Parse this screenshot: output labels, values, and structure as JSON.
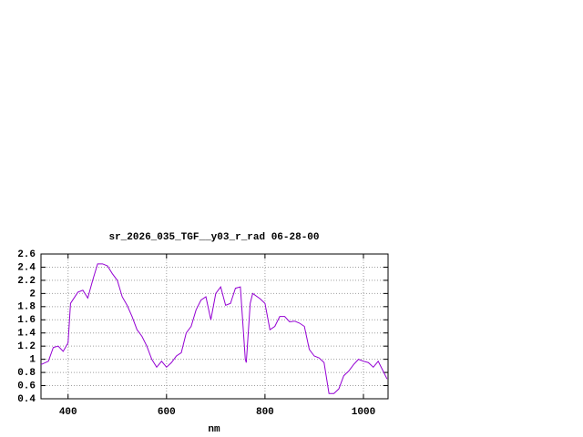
{
  "chart_data": {
    "type": "line",
    "title": "sr_2026_035_TGF__y03_r_rad 06-28-00",
    "x_label": "nm",
    "x": [
      345,
      360,
      370,
      380,
      390,
      400,
      405,
      420,
      430,
      440,
      450,
      460,
      470,
      480,
      490,
      500,
      510,
      520,
      530,
      540,
      550,
      560,
      570,
      580,
      590,
      600,
      610,
      620,
      630,
      640,
      650,
      660,
      670,
      680,
      690,
      700,
      710,
      720,
      730,
      740,
      750,
      760,
      762,
      770,
      775,
      790,
      800,
      810,
      820,
      830,
      840,
      850,
      860,
      870,
      880,
      890,
      900,
      910,
      920,
      930,
      940,
      950,
      960,
      970,
      980,
      990,
      1000,
      1010,
      1020,
      1030,
      1040,
      1048
    ],
    "values": [
      0.92,
      0.97,
      1.18,
      1.2,
      1.12,
      1.25,
      1.85,
      2.02,
      2.05,
      1.93,
      2.2,
      2.45,
      2.45,
      2.42,
      2.3,
      2.2,
      1.95,
      1.82,
      1.65,
      1.45,
      1.35,
      1.2,
      1.0,
      0.88,
      0.97,
      0.88,
      0.95,
      1.05,
      1.1,
      1.4,
      1.5,
      1.75,
      1.9,
      1.95,
      1.6,
      2.0,
      2.1,
      1.82,
      1.85,
      2.08,
      2.1,
      1.0,
      0.95,
      1.85,
      2.0,
      1.92,
      1.85,
      1.45,
      1.5,
      1.65,
      1.65,
      1.57,
      1.58,
      1.55,
      1.5,
      1.15,
      1.05,
      1.02,
      0.95,
      0.48,
      0.48,
      0.55,
      0.75,
      0.82,
      0.92,
      1.0,
      0.97,
      0.95,
      0.88,
      0.97,
      0.82,
      0.7
    ],
    "color": "#9400d3",
    "xlim": [
      345,
      1050
    ],
    "ylim": [
      0.4,
      2.6
    ],
    "xticks": [
      400,
      600,
      800,
      1000
    ],
    "yticks": [
      0.4,
      0.6,
      0.8,
      1,
      1.2,
      1.4,
      1.6,
      1.8,
      2,
      2.2,
      2.4,
      2.6
    ],
    "grid": true
  }
}
